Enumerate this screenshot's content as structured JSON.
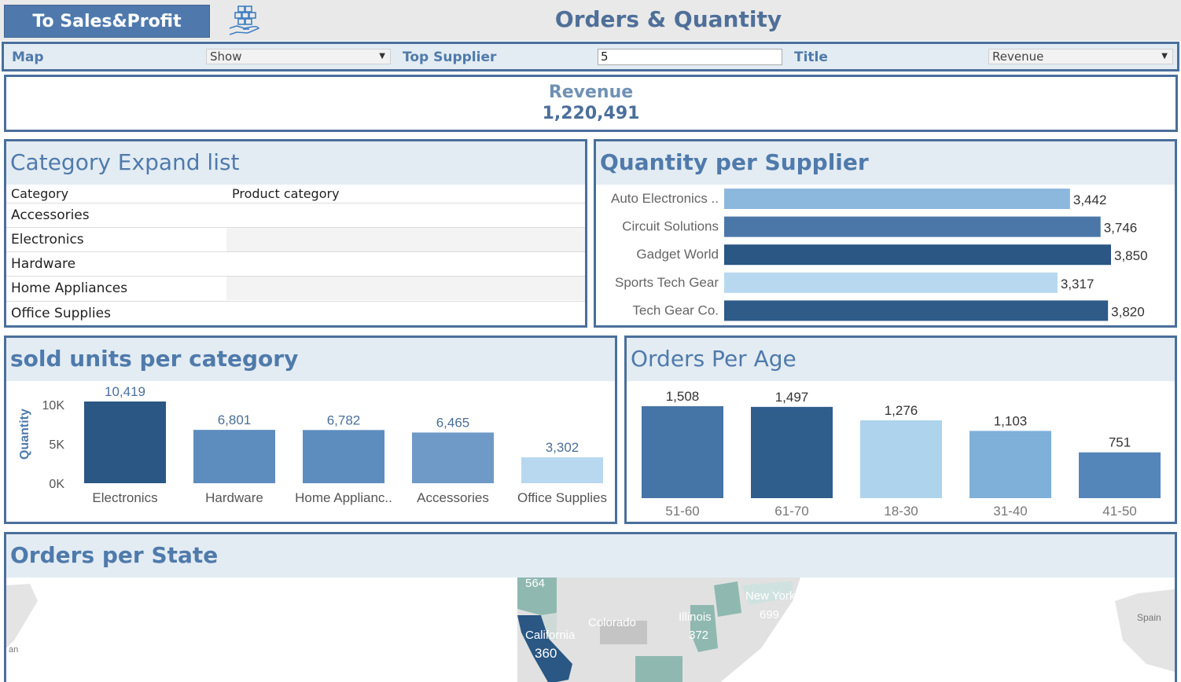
{
  "topbar": {
    "nav_button": "To Sales&Profit",
    "title": "Orders & Quantity"
  },
  "filters": {
    "map_label": "Map",
    "map_value": "Show",
    "top_supplier_label": "Top Supplier",
    "top_supplier_value": "5",
    "title_label": "Title",
    "title_value": "Revenue"
  },
  "kpi": {
    "label": "Revenue",
    "value": "1,220,491"
  },
  "category_panel": {
    "title": "Category Expand list",
    "col1": "Category",
    "col2": "Product category",
    "rows": [
      "Accessories",
      "Electronics",
      "Hardware",
      "Home Appliances",
      "Office Supplies"
    ]
  },
  "supplier_panel": {
    "title": "Quantity per Supplier"
  },
  "sold_panel": {
    "title": "sold units per category"
  },
  "age_panel": {
    "title": "Orders Per Age"
  },
  "state_panel": {
    "title": "Orders per State",
    "map_labels": [
      "564",
      "New York",
      "699",
      "Illinois",
      "372",
      "Colorado",
      "California",
      "360",
      "Spain",
      "an"
    ]
  },
  "colors": {
    "dark_blue": "#2a5783",
    "mid_blue": "#4a77a8",
    "steel_blue": "#5d8dbf",
    "light_blue": "#8db8de",
    "pale_blue": "#b7d8ef",
    "frame": "#4a6f9b"
  },
  "chart_data": [
    {
      "type": "bar",
      "orientation": "horizontal",
      "title": "Quantity per Supplier",
      "categories": [
        "Auto Electronics ..",
        "Circuit Solutions",
        "Gadget World",
        "Sports Tech Gear",
        "Tech Gear Co."
      ],
      "values": [
        3442,
        3746,
        3850,
        3317,
        3820
      ],
      "labels": [
        "3,442",
        "3,746",
        "3,850",
        "3,317",
        "3,820"
      ],
      "colors": [
        "#8db8de",
        "#4a77a8",
        "#2a5783",
        "#b7d8ef",
        "#2e5b88"
      ]
    },
    {
      "type": "bar",
      "title": "sold units per category",
      "categories": [
        "Electronics",
        "Hardware",
        "Home Applianc..",
        "Accessories",
        "Office Supplies"
      ],
      "values": [
        10419,
        6801,
        6782,
        6465,
        3302
      ],
      "labels": [
        "10,419",
        "6,801",
        "6,782",
        "6,465",
        "3,302"
      ],
      "ylabel": "Quantity",
      "yticks": [
        "10K",
        "5K",
        "0K"
      ],
      "ytick_values": [
        10000,
        5000,
        0
      ],
      "colors": [
        "#2a5783",
        "#5d8dbf",
        "#5d8dbf",
        "#6f9ac8",
        "#b7d8ef"
      ]
    },
    {
      "type": "bar",
      "title": "Orders Per Age",
      "categories": [
        "51-60",
        "61-70",
        "18-30",
        "31-40",
        "41-50"
      ],
      "values": [
        1508,
        1497,
        1276,
        1103,
        751
      ],
      "labels": [
        "1,508",
        "1,497",
        "1,276",
        "1,103",
        "751"
      ],
      "colors": [
        "#4574a6",
        "#2f5d8c",
        "#aed3ec",
        "#7eb0d9",
        "#5486b9"
      ]
    }
  ]
}
